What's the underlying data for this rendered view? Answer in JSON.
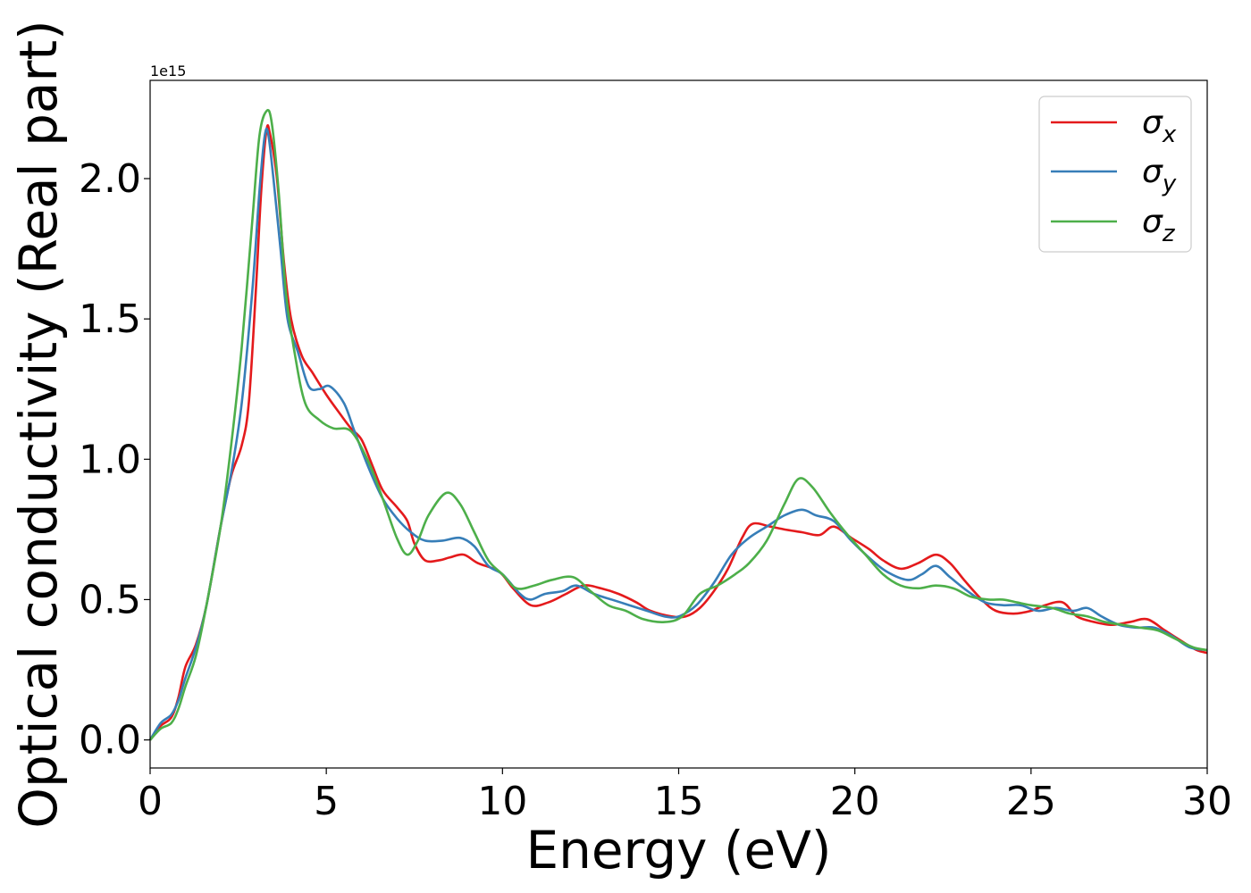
{
  "chart_data": {
    "type": "line",
    "title": "",
    "xlabel": "Energy (eV)",
    "ylabel": "Optical conductivity (Real part)",
    "y_offset_label": "1e15",
    "xlim": [
      0,
      30
    ],
    "ylim": [
      -0.1,
      2.35
    ],
    "x_ticks": [
      0,
      5,
      10,
      15,
      20,
      25,
      30
    ],
    "x_tick_labels": [
      "0",
      "5",
      "10",
      "15",
      "20",
      "25",
      "30"
    ],
    "y_ticks": [
      0.0,
      0.5,
      1.0,
      1.5,
      2.0
    ],
    "y_tick_labels": [
      "0.0",
      "0.5",
      "1.0",
      "1.5",
      "2.0"
    ],
    "grid": false,
    "legend_position": "top-right",
    "series": [
      {
        "name": "σ",
        "subscript": "x",
        "color": "#e41a1c",
        "points": [
          [
            0,
            0
          ],
          [
            0.3,
            0.05
          ],
          [
            0.6,
            0.08
          ],
          [
            0.8,
            0.15
          ],
          [
            1.0,
            0.26
          ],
          [
            1.3,
            0.34
          ],
          [
            1.6,
            0.48
          ],
          [
            2.0,
            0.76
          ],
          [
            2.3,
            0.94
          ],
          [
            2.6,
            1.05
          ],
          [
            2.8,
            1.2
          ],
          [
            3.0,
            1.6
          ],
          [
            3.15,
            1.95
          ],
          [
            3.3,
            2.17
          ],
          [
            3.4,
            2.16
          ],
          [
            3.6,
            2.0
          ],
          [
            3.8,
            1.7
          ],
          [
            4.0,
            1.5
          ],
          [
            4.3,
            1.37
          ],
          [
            4.6,
            1.31
          ],
          [
            5.0,
            1.23
          ],
          [
            5.4,
            1.16
          ],
          [
            5.7,
            1.11
          ],
          [
            6.0,
            1.07
          ],
          [
            6.3,
            0.98
          ],
          [
            6.6,
            0.89
          ],
          [
            7.0,
            0.83
          ],
          [
            7.3,
            0.78
          ],
          [
            7.5,
            0.7
          ],
          [
            7.8,
            0.64
          ],
          [
            8.2,
            0.64
          ],
          [
            8.5,
            0.65
          ],
          [
            8.9,
            0.66
          ],
          [
            9.3,
            0.63
          ],
          [
            9.9,
            0.6
          ],
          [
            10.3,
            0.54
          ],
          [
            10.8,
            0.48
          ],
          [
            11.3,
            0.49
          ],
          [
            11.8,
            0.52
          ],
          [
            12.3,
            0.55
          ],
          [
            12.8,
            0.54
          ],
          [
            13.3,
            0.52
          ],
          [
            13.8,
            0.49
          ],
          [
            14.2,
            0.46
          ],
          [
            14.8,
            0.44
          ],
          [
            15.2,
            0.44
          ],
          [
            15.6,
            0.47
          ],
          [
            16.0,
            0.53
          ],
          [
            16.4,
            0.61
          ],
          [
            16.8,
            0.72
          ],
          [
            17.1,
            0.77
          ],
          [
            17.6,
            0.76
          ],
          [
            18.0,
            0.75
          ],
          [
            18.5,
            0.74
          ],
          [
            19.0,
            0.73
          ],
          [
            19.4,
            0.76
          ],
          [
            19.9,
            0.72
          ],
          [
            20.4,
            0.68
          ],
          [
            20.8,
            0.64
          ],
          [
            21.3,
            0.61
          ],
          [
            21.8,
            0.63
          ],
          [
            22.3,
            0.66
          ],
          [
            22.7,
            0.63
          ],
          [
            23.1,
            0.57
          ],
          [
            23.6,
            0.5
          ],
          [
            24.0,
            0.46
          ],
          [
            24.5,
            0.45
          ],
          [
            25.0,
            0.46
          ],
          [
            25.4,
            0.48
          ],
          [
            25.9,
            0.49
          ],
          [
            26.3,
            0.44
          ],
          [
            26.8,
            0.42
          ],
          [
            27.3,
            0.41
          ],
          [
            27.8,
            0.42
          ],
          [
            28.3,
            0.43
          ],
          [
            28.8,
            0.39
          ],
          [
            29.3,
            0.35
          ],
          [
            29.7,
            0.32
          ],
          [
            30,
            0.31
          ]
        ]
      },
      {
        "name": "σ",
        "subscript": "y",
        "color": "#377eb8",
        "points": [
          [
            0,
            0
          ],
          [
            0.3,
            0.06
          ],
          [
            0.6,
            0.09
          ],
          [
            0.8,
            0.14
          ],
          [
            1.0,
            0.22
          ],
          [
            1.3,
            0.33
          ],
          [
            1.6,
            0.48
          ],
          [
            2.0,
            0.76
          ],
          [
            2.3,
            0.95
          ],
          [
            2.6,
            1.2
          ],
          [
            2.9,
            1.6
          ],
          [
            3.1,
            1.95
          ],
          [
            3.25,
            2.15
          ],
          [
            3.35,
            2.16
          ],
          [
            3.5,
            2.0
          ],
          [
            3.7,
            1.75
          ],
          [
            3.9,
            1.5
          ],
          [
            4.2,
            1.38
          ],
          [
            4.5,
            1.26
          ],
          [
            4.8,
            1.25
          ],
          [
            5.1,
            1.26
          ],
          [
            5.5,
            1.2
          ],
          [
            5.8,
            1.1
          ],
          [
            6.2,
            0.97
          ],
          [
            6.6,
            0.86
          ],
          [
            7.0,
            0.79
          ],
          [
            7.4,
            0.74
          ],
          [
            7.8,
            0.71
          ],
          [
            8.3,
            0.71
          ],
          [
            8.8,
            0.72
          ],
          [
            9.2,
            0.69
          ],
          [
            9.6,
            0.62
          ],
          [
            10.0,
            0.59
          ],
          [
            10.5,
            0.52
          ],
          [
            10.8,
            0.5
          ],
          [
            11.2,
            0.52
          ],
          [
            11.7,
            0.53
          ],
          [
            12.1,
            0.55
          ],
          [
            12.6,
            0.52
          ],
          [
            13.1,
            0.5
          ],
          [
            13.6,
            0.48
          ],
          [
            14.1,
            0.46
          ],
          [
            14.6,
            0.44
          ],
          [
            15.0,
            0.44
          ],
          [
            15.5,
            0.48
          ],
          [
            16.0,
            0.56
          ],
          [
            16.5,
            0.66
          ],
          [
            17.0,
            0.72
          ],
          [
            17.5,
            0.76
          ],
          [
            18.0,
            0.8
          ],
          [
            18.5,
            0.82
          ],
          [
            18.9,
            0.8
          ],
          [
            19.4,
            0.78
          ],
          [
            19.9,
            0.71
          ],
          [
            20.4,
            0.65
          ],
          [
            20.9,
            0.6
          ],
          [
            21.5,
            0.57
          ],
          [
            21.9,
            0.59
          ],
          [
            22.3,
            0.62
          ],
          [
            22.7,
            0.58
          ],
          [
            23.2,
            0.53
          ],
          [
            23.7,
            0.49
          ],
          [
            24.2,
            0.48
          ],
          [
            24.7,
            0.48
          ],
          [
            25.2,
            0.46
          ],
          [
            25.7,
            0.47
          ],
          [
            26.2,
            0.46
          ],
          [
            26.6,
            0.47
          ],
          [
            27.0,
            0.44
          ],
          [
            27.5,
            0.41
          ],
          [
            28.0,
            0.4
          ],
          [
            28.5,
            0.4
          ],
          [
            29.0,
            0.37
          ],
          [
            29.5,
            0.33
          ],
          [
            30,
            0.32
          ]
        ]
      },
      {
        "name": "σ",
        "subscript": "z",
        "color": "#4daf4a",
        "points": [
          [
            0,
            0
          ],
          [
            0.3,
            0.04
          ],
          [
            0.6,
            0.06
          ],
          [
            0.8,
            0.11
          ],
          [
            1.0,
            0.19
          ],
          [
            1.3,
            0.3
          ],
          [
            1.6,
            0.48
          ],
          [
            2.0,
            0.76
          ],
          [
            2.3,
            1.05
          ],
          [
            2.6,
            1.4
          ],
          [
            2.9,
            1.85
          ],
          [
            3.1,
            2.15
          ],
          [
            3.3,
            2.24
          ],
          [
            3.45,
            2.2
          ],
          [
            3.65,
            1.95
          ],
          [
            3.85,
            1.6
          ],
          [
            4.1,
            1.38
          ],
          [
            4.4,
            1.2
          ],
          [
            4.8,
            1.14
          ],
          [
            5.2,
            1.11
          ],
          [
            5.7,
            1.1
          ],
          [
            6.2,
            0.99
          ],
          [
            6.6,
            0.86
          ],
          [
            7.0,
            0.72
          ],
          [
            7.3,
            0.66
          ],
          [
            7.6,
            0.71
          ],
          [
            7.9,
            0.8
          ],
          [
            8.4,
            0.88
          ],
          [
            8.8,
            0.84
          ],
          [
            9.2,
            0.74
          ],
          [
            9.6,
            0.64
          ],
          [
            10.0,
            0.59
          ],
          [
            10.4,
            0.54
          ],
          [
            10.9,
            0.55
          ],
          [
            11.4,
            0.57
          ],
          [
            12.0,
            0.58
          ],
          [
            12.5,
            0.53
          ],
          [
            13.0,
            0.48
          ],
          [
            13.5,
            0.46
          ],
          [
            14.0,
            0.43
          ],
          [
            14.6,
            0.42
          ],
          [
            15.1,
            0.44
          ],
          [
            15.6,
            0.52
          ],
          [
            16.1,
            0.55
          ],
          [
            16.6,
            0.59
          ],
          [
            17.0,
            0.63
          ],
          [
            17.5,
            0.71
          ],
          [
            18.0,
            0.84
          ],
          [
            18.4,
            0.93
          ],
          [
            18.8,
            0.9
          ],
          [
            19.3,
            0.81
          ],
          [
            19.8,
            0.73
          ],
          [
            20.3,
            0.66
          ],
          [
            20.8,
            0.59
          ],
          [
            21.3,
            0.55
          ],
          [
            21.8,
            0.54
          ],
          [
            22.3,
            0.55
          ],
          [
            22.8,
            0.54
          ],
          [
            23.3,
            0.51
          ],
          [
            23.8,
            0.5
          ],
          [
            24.2,
            0.5
          ],
          [
            24.6,
            0.49
          ],
          [
            25.0,
            0.48
          ],
          [
            25.6,
            0.47
          ],
          [
            26.1,
            0.45
          ],
          [
            26.6,
            0.44
          ],
          [
            27.1,
            0.42
          ],
          [
            27.6,
            0.41
          ],
          [
            28.1,
            0.4
          ],
          [
            28.6,
            0.39
          ],
          [
            29.1,
            0.36
          ],
          [
            29.6,
            0.33
          ],
          [
            30,
            0.32
          ]
        ]
      }
    ]
  }
}
